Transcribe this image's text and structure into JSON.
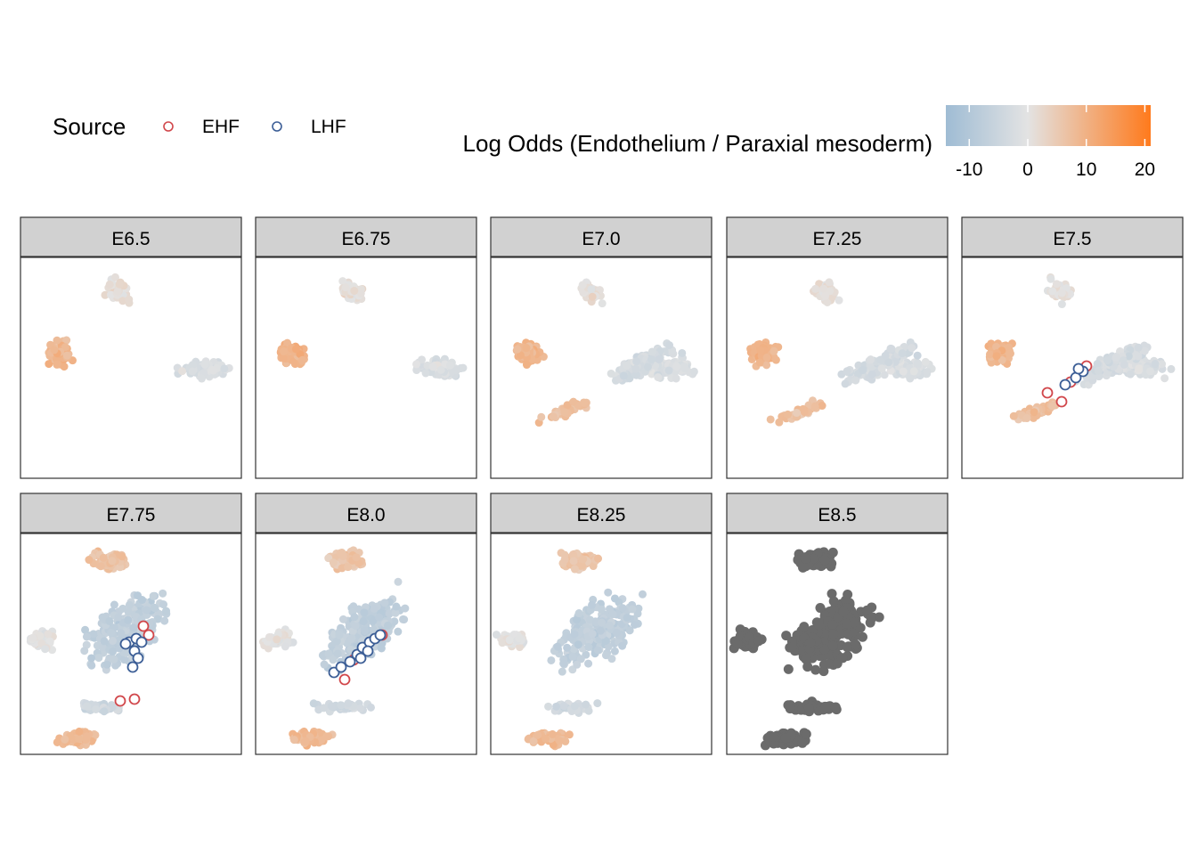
{
  "legend": {
    "source_title": "Source",
    "sources": [
      {
        "label": "EHF",
        "color": "#d1474b"
      },
      {
        "label": "LHF",
        "color": "#3c5e96"
      }
    ],
    "colorbar_title": "Log Odds (Endothelium / Paraxial mesoderm)",
    "colorbar_ticks": [
      "-10",
      "0",
      "10",
      "20"
    ],
    "colorbar_tick_values": [
      -10,
      0,
      10,
      20
    ],
    "colorbar_range": [
      -14,
      21
    ],
    "colorbar_colors": {
      "low": "#9fbcd4",
      "mid": "#e3e3e3",
      "high": "#ff7a1c"
    }
  },
  "chart_data": {
    "type": "scatter",
    "layout": "facet-grid 2 rows x 5 columns",
    "panels": [
      {
        "label": "E6.5"
      },
      {
        "label": "E6.75"
      },
      {
        "label": "E7.0"
      },
      {
        "label": "E7.25"
      },
      {
        "label": "E7.5"
      },
      {
        "label": "E7.75"
      },
      {
        "label": "E8.0"
      },
      {
        "label": "E8.25"
      },
      {
        "label": "E8.5"
      }
    ],
    "na_color": "#6b6b6b",
    "strip_color": "#d1d1d1",
    "marker_fill": "#ffffff"
  }
}
